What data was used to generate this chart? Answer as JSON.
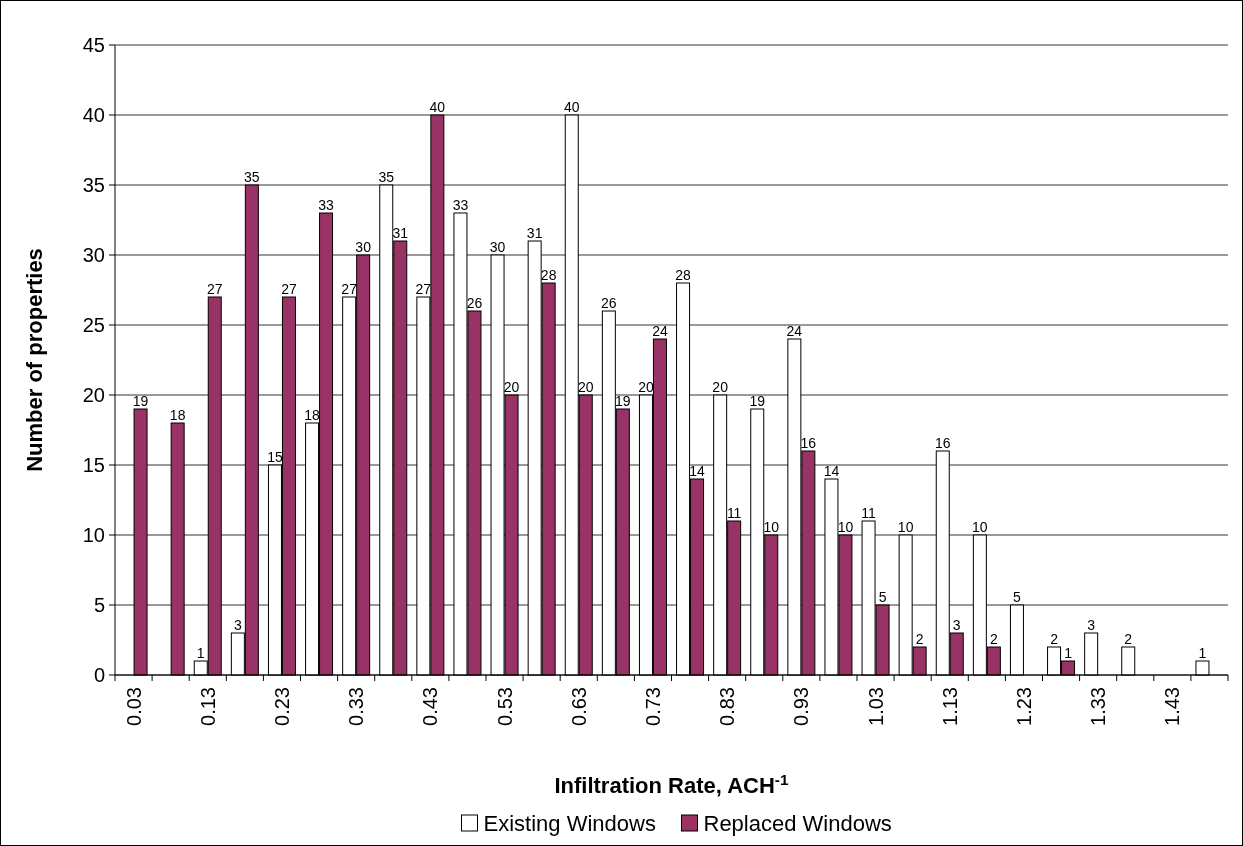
{
  "chart_data": {
    "type": "bar",
    "xlabel": "Infiltration Rate, ACH$^{-1}$",
    "ylabel": "Number of properties",
    "categories": [
      "0.03",
      null,
      "0.13",
      null,
      "0.23",
      null,
      "0.33",
      null,
      "0.43",
      null,
      "0.53",
      null,
      "0.63",
      null,
      "0.73",
      null,
      "0.83",
      null,
      "0.93",
      null,
      "1.03",
      null,
      "1.13",
      null,
      "1.23",
      null,
      "1.33",
      null,
      "1.43",
      null
    ],
    "series": [
      {
        "name": "Existing Windows",
        "color": "#ffffff",
        "values": [
          null,
          null,
          1,
          3,
          15,
          18,
          27,
          35,
          27,
          33,
          30,
          31,
          40,
          26,
          20,
          28,
          20,
          19,
          24,
          14,
          11,
          10,
          16,
          10,
          5,
          2,
          3,
          2,
          null,
          1
        ]
      },
      {
        "name": "Replaced Windows",
        "color": "#993366",
        "values": [
          19,
          18,
          27,
          35,
          27,
          33,
          30,
          31,
          40,
          26,
          20,
          28,
          20,
          19,
          24,
          14,
          11,
          10,
          16,
          10,
          5,
          2,
          3,
          2,
          null,
          1,
          null,
          null,
          null,
          null
        ]
      }
    ],
    "ylim": [
      0,
      45
    ],
    "yticks": [
      0,
      5,
      10,
      15,
      20,
      25,
      30,
      35,
      40,
      45
    ],
    "grid": "y",
    "legend": "bottom",
    "data_labels": true
  }
}
